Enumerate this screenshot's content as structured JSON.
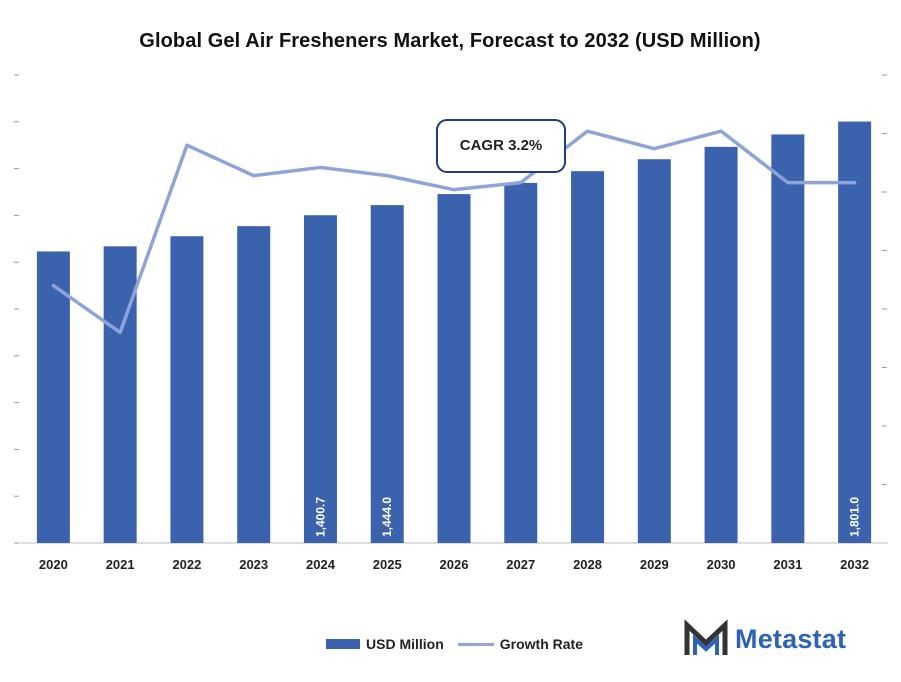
{
  "chart_data": {
    "type": "bar",
    "title": "Global Gel Air Fresheners Market, Forecast to 2032 (USD Million)",
    "categories": [
      "2020",
      "2021",
      "2022",
      "2023",
      "2024",
      "2025",
      "2026",
      "2027",
      "2028",
      "2029",
      "2030",
      "2031",
      "2032"
    ],
    "series": [
      {
        "name": "USD Million",
        "type": "bar",
        "color": "#3b62ad",
        "values": [
          1246,
          1268,
          1311,
          1354,
          1400.7,
          1444.0,
          1491,
          1539,
          1589,
          1640,
          1693,
          1746,
          1801.0
        ],
        "data_labels": {
          "4": "1,400.7",
          "5": "1,444.0",
          "12": "1,801.0"
        }
      },
      {
        "name": "Growth Rate",
        "type": "line",
        "color": "#8ea4d8",
        "values": [
          2.2,
          1.8,
          3.4,
          3.14,
          3.21,
          3.14,
          3.02,
          3.08,
          3.52,
          3.37,
          3.52,
          3.08,
          3.08
        ]
      }
    ],
    "ylim_primary": [
      0,
      2000
    ],
    "ylim_secondary": [
      0,
      4
    ],
    "annotation": "CAGR 3.2%",
    "legend_position": "bottom"
  },
  "legend": {
    "bar_label": "USD Million",
    "line_label": "Growth Rate"
  },
  "brand": {
    "name": "Metastat",
    "color": "#2c63b8"
  }
}
